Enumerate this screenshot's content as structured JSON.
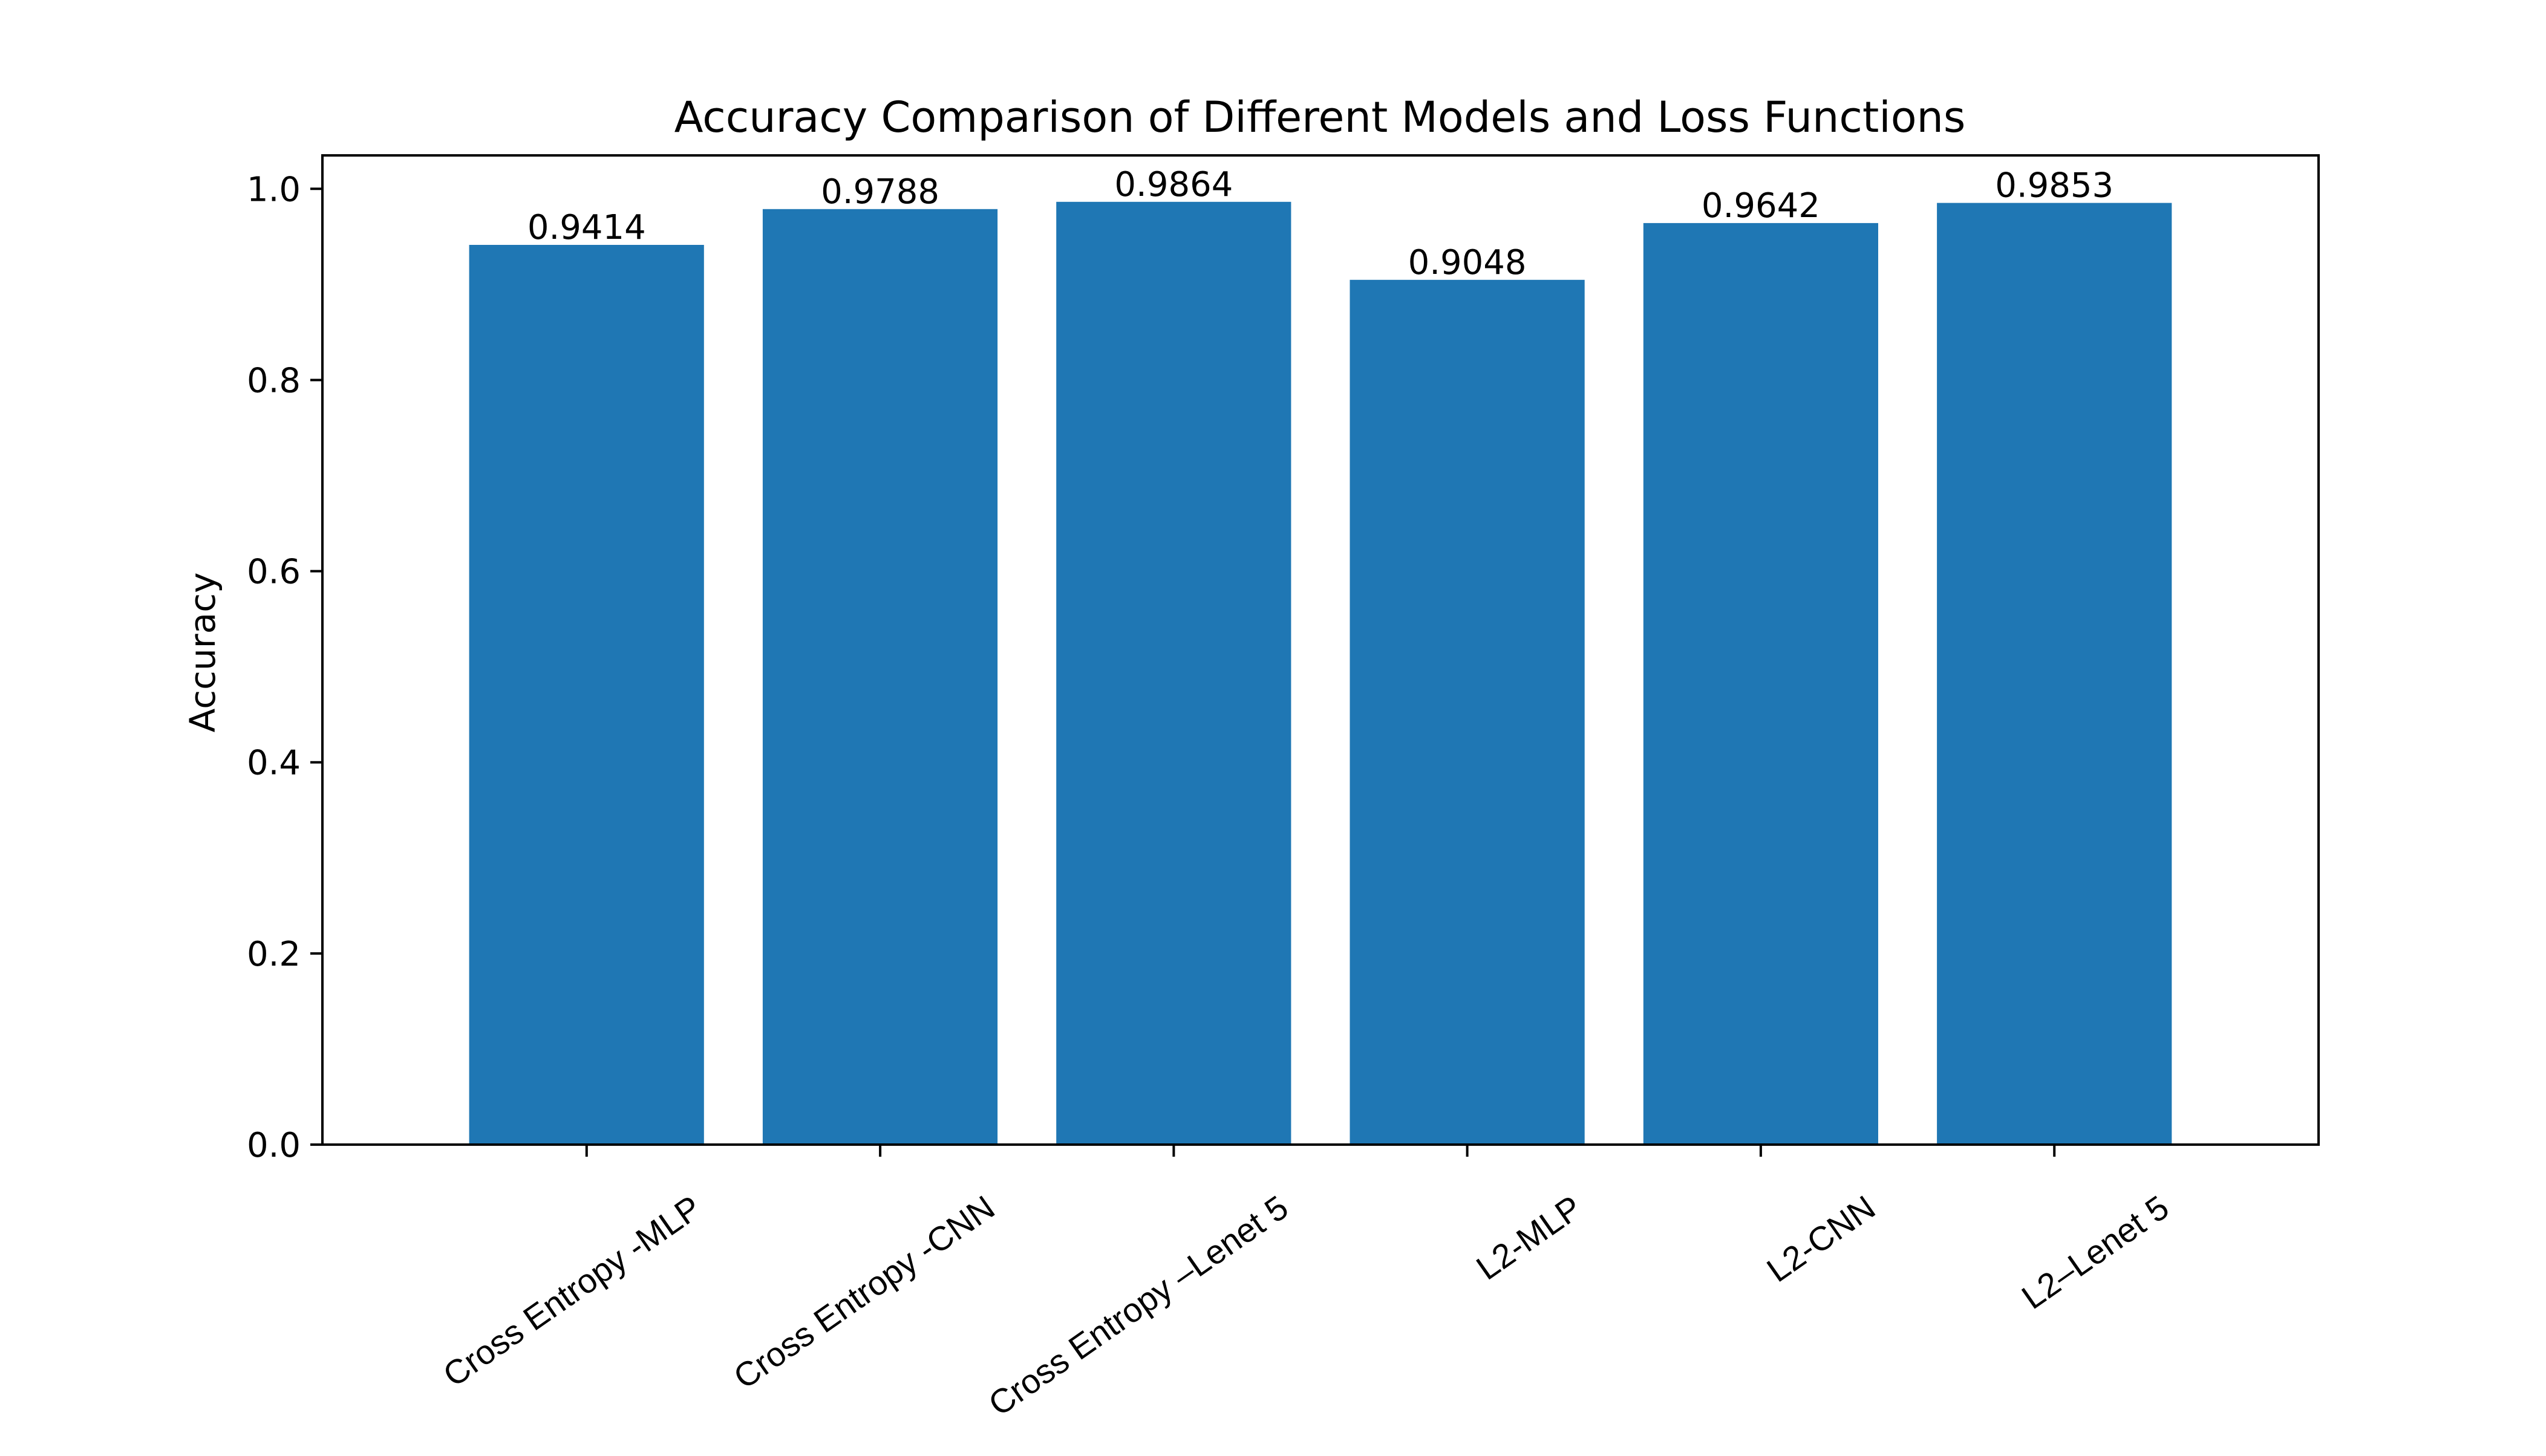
{
  "chart_data": {
    "type": "bar",
    "title": "Accuracy Comparison of Different Models and Loss Functions",
    "xlabel": "",
    "ylabel": "Accuracy",
    "categories": [
      "Cross Entropy -MLP",
      "Cross Entropy -CNN",
      "Cross Entropy –Lenet 5",
      "L2-MLP",
      "L2-CNN",
      "L2–Lenet 5"
    ],
    "values": [
      0.9414,
      0.9788,
      0.9864,
      0.9048,
      0.9642,
      0.9853
    ],
    "value_labels": [
      "0.9414",
      "0.9788",
      "0.9864",
      "0.9048",
      "0.9642",
      "0.9853"
    ],
    "ylim": [
      0,
      1.035
    ],
    "yticks": [
      0.0,
      0.2,
      0.4,
      0.6,
      0.8,
      1.0
    ],
    "ytick_labels": [
      "0.0",
      "0.2",
      "0.4",
      "0.6",
      "0.8",
      "1.0"
    ],
    "grid": false,
    "legend": "none",
    "bar_color": "#1f77b4"
  }
}
